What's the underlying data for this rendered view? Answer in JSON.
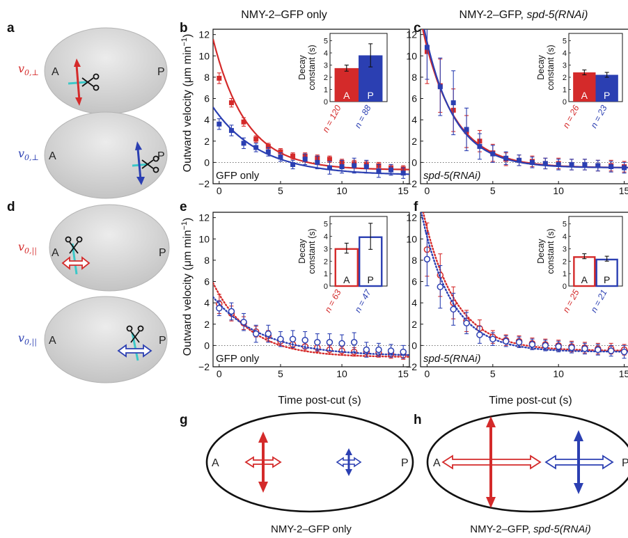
{
  "panel_labels": {
    "a": "a",
    "b": "b",
    "c": "c",
    "d": "d",
    "e": "e",
    "f": "f",
    "g": "g",
    "h": "h"
  },
  "column_titles": {
    "left": "NMY-2–GFP only",
    "right_main": "NMY-2–GFP, ",
    "right_italic": "spd-5(RNAi)"
  },
  "embryo_labels": {
    "anterior": "A",
    "posterior": "P"
  },
  "velocity_symbols": {
    "perp_base": "v",
    "perp_sub": "0,⊥",
    "par_base": "v",
    "par_sub": "0,||"
  },
  "colors": {
    "anterior": "#d42a2a",
    "posterior": "#2b3fb2",
    "cyan": "#3cc8c8",
    "embryo_fill": "#d6d6d6",
    "embryo_edge": "#b4b4b4"
  },
  "axes": {
    "ylabel_main": "Outward velocity (μm min",
    "ylabel_sup": "−1",
    "ylabel_close": ")",
    "xlabel": "Time post-cut (s)",
    "xticks": [
      0,
      5,
      10,
      15
    ],
    "yticks": [
      -2,
      0,
      2,
      4,
      6,
      8,
      10,
      12
    ],
    "xlim": [
      -0.5,
      15.5
    ],
    "ylim": [
      -2,
      12.5
    ],
    "inset_ylabel_1": "Decay",
    "inset_ylabel_2": "constant (s)",
    "inset_yticks": [
      0,
      1,
      2,
      3,
      4,
      5
    ],
    "inset_ylim": [
      0,
      5.6
    ]
  },
  "chart_data": [
    {
      "panel": "b",
      "type": "scatter",
      "condition_label": "GFP only",
      "marker": "filled-square",
      "fit": "solid",
      "series": [
        {
          "region": "A",
          "x": [
            0,
            1,
            2,
            3,
            4,
            5,
            6,
            7,
            8,
            9,
            10,
            11,
            12,
            13,
            14,
            15
          ],
          "y": [
            7.9,
            5.6,
            3.8,
            2.2,
            1.5,
            1.0,
            0.6,
            0.6,
            0.4,
            0.3,
            0.0,
            -0.1,
            -0.2,
            -0.3,
            -0.5,
            -0.6
          ],
          "err": [
            0.5,
            0.4,
            0.4,
            0.3,
            0.3,
            0.3,
            0.3,
            0.3,
            0.3,
            0.3,
            0.3,
            0.3,
            0.3,
            0.3,
            0.3,
            0.3
          ],
          "fit": {
            "amplitude": 10.2,
            "tau": 2.7,
            "offset": -0.7
          }
        },
        {
          "region": "P",
          "x": [
            0,
            1,
            2,
            3,
            4,
            5,
            6,
            7,
            8,
            9,
            10,
            11,
            12,
            13,
            14,
            15
          ],
          "y": [
            3.6,
            3.0,
            1.8,
            1.4,
            1.0,
            0.5,
            -0.2,
            0.3,
            0.0,
            -0.5,
            -0.4,
            -0.3,
            -0.4,
            -0.8,
            -0.7,
            -1.0
          ],
          "err": [
            0.5,
            0.5,
            0.5,
            0.4,
            0.4,
            0.4,
            0.4,
            0.5,
            0.6,
            0.6,
            0.6,
            0.7,
            0.6,
            0.6,
            0.5,
            0.5
          ],
          "fit": {
            "amplitude": 5.6,
            "tau": 3.8,
            "offset": -1.2
          }
        }
      ],
      "inset": {
        "type": "bar",
        "categories": [
          "A",
          "P"
        ],
        "values": [
          2.75,
          3.8
        ],
        "errors": [
          0.25,
          0.95
        ],
        "fill": "solid",
        "n": [
          "n = 120",
          "n = 88"
        ]
      }
    },
    {
      "panel": "c",
      "type": "scatter",
      "condition_label": "spd-5(RNAi)",
      "marker": "filled-square",
      "fit": "solid",
      "series": [
        {
          "region": "A",
          "x": [
            0,
            1,
            2,
            3,
            4,
            5,
            6,
            7,
            8,
            9,
            10,
            11,
            12,
            13,
            14,
            15
          ],
          "y": [
            10.4,
            7.2,
            4.9,
            2.9,
            2.0,
            0.9,
            0.3,
            0.2,
            0.1,
            -0.1,
            -0.1,
            -0.2,
            -0.2,
            -0.3,
            -0.3,
            -0.4
          ],
          "err": [
            3.0,
            2.5,
            2.0,
            1.5,
            1.0,
            0.8,
            0.6,
            0.5,
            0.5,
            0.5,
            0.5,
            0.5,
            0.5,
            0.5,
            0.5,
            0.5
          ],
          "fit": {
            "amplitude": 11.3,
            "tau": 2.4,
            "offset": -0.5
          }
        },
        {
          "region": "P",
          "x": [
            0,
            1,
            2,
            3,
            4,
            5,
            6,
            7,
            8,
            9,
            10,
            11,
            12,
            13,
            14,
            15
          ],
          "y": [
            10.8,
            7.1,
            5.6,
            3.1,
            1.5,
            0.8,
            0.4,
            0.2,
            0.0,
            -0.1,
            -0.2,
            -0.2,
            -0.2,
            -0.3,
            -0.4,
            -0.5
          ],
          "err": [
            3.0,
            2.7,
            3.0,
            2.0,
            1.2,
            0.8,
            0.6,
            0.5,
            0.5,
            0.5,
            0.5,
            0.5,
            0.5,
            0.5,
            0.5,
            0.5
          ],
          "fit": {
            "amplitude": 11.8,
            "tau": 2.25,
            "offset": -0.5
          }
        }
      ],
      "inset": {
        "type": "bar",
        "categories": [
          "A",
          "P"
        ],
        "values": [
          2.4,
          2.2
        ],
        "errors": [
          0.2,
          0.2
        ],
        "fill": "solid",
        "n": [
          "n = 26",
          "n = 23"
        ]
      }
    },
    {
      "panel": "e",
      "type": "scatter",
      "condition_label": "GFP only",
      "marker": "open-circle",
      "fit": "dotted",
      "series": [
        {
          "region": "A",
          "x": [
            0,
            1,
            2,
            3,
            4,
            5,
            6,
            7,
            8,
            9,
            10,
            11,
            12,
            13,
            14,
            15
          ],
          "y": [
            3.9,
            3.0,
            2.1,
            1.3,
            0.9,
            0.4,
            0.1,
            -0.1,
            -0.2,
            -0.4,
            -0.5,
            -0.6,
            -0.6,
            -0.7,
            -0.8,
            -0.9
          ],
          "err": [
            0.9,
            0.7,
            0.6,
            0.5,
            0.5,
            0.4,
            0.4,
            0.4,
            0.4,
            0.4,
            0.4,
            0.4,
            0.4,
            0.4,
            0.4,
            0.4
          ],
          "fit": {
            "amplitude": 5.9,
            "tau": 3.0,
            "offset": -1.1
          }
        },
        {
          "region": "P",
          "x": [
            0,
            1,
            2,
            3,
            4,
            5,
            6,
            7,
            8,
            9,
            10,
            11,
            12,
            13,
            14,
            15
          ],
          "y": [
            3.5,
            3.2,
            2.2,
            1.1,
            1.1,
            0.6,
            0.6,
            0.5,
            0.3,
            0.3,
            0.2,
            0.3,
            -0.4,
            -0.4,
            -0.5,
            -0.6
          ],
          "err": [
            0.7,
            0.8,
            0.8,
            0.8,
            0.8,
            0.7,
            0.8,
            0.8,
            0.8,
            0.8,
            0.8,
            0.9,
            0.7,
            0.6,
            0.6,
            0.6
          ],
          "fit": {
            "amplitude": 4.9,
            "tau": 4.0,
            "offset": -1.0
          }
        }
      ],
      "inset": {
        "type": "bar",
        "categories": [
          "A",
          "P"
        ],
        "values": [
          3.05,
          4.0
        ],
        "errors": [
          0.4,
          1.05
        ],
        "fill": "open",
        "n": [
          "n = 63",
          "n = 47"
        ]
      }
    },
    {
      "panel": "f",
      "type": "scatter",
      "condition_label": "spd-5(RNAi)",
      "marker": "open-circle",
      "fit": "dotted",
      "series": [
        {
          "region": "A",
          "x": [
            0,
            1,
            2,
            3,
            4,
            5,
            6,
            7,
            8,
            9,
            10,
            11,
            12,
            13,
            14,
            15
          ],
          "y": [
            9.0,
            6.6,
            4.0,
            2.3,
            1.6,
            0.8,
            0.5,
            0.4,
            0.2,
            0.1,
            0.0,
            -0.1,
            -0.2,
            -0.3,
            -0.3,
            -0.4
          ],
          "err": [
            2.5,
            2.0,
            1.5,
            1.0,
            0.8,
            0.6,
            0.5,
            0.5,
            0.5,
            0.5,
            0.5,
            0.5,
            0.5,
            0.5,
            0.5,
            0.5
          ],
          "fit": {
            "amplitude": 11.5,
            "tau": 2.4,
            "offset": -0.5
          }
        },
        {
          "region": "P",
          "x": [
            0,
            1,
            2,
            3,
            4,
            5,
            6,
            7,
            8,
            9,
            10,
            11,
            12,
            13,
            14,
            15
          ],
          "y": [
            8.1,
            5.5,
            3.4,
            2.1,
            1.0,
            0.6,
            0.4,
            0.3,
            0.1,
            0.0,
            -0.1,
            -0.2,
            -0.3,
            -0.4,
            -0.5,
            -0.6
          ],
          "err": [
            2.5,
            2.0,
            1.5,
            1.0,
            0.8,
            0.6,
            0.5,
            0.5,
            0.5,
            0.5,
            0.5,
            0.5,
            0.5,
            0.5,
            0.5,
            0.6
          ],
          "fit": {
            "amplitude": 10.8,
            "tau": 2.3,
            "offset": -0.6
          }
        }
      ],
      "inset": {
        "type": "bar",
        "categories": [
          "A",
          "P"
        ],
        "values": [
          2.4,
          2.2
        ],
        "errors": [
          0.2,
          0.2
        ],
        "fill": "open",
        "n": [
          "n = 25",
          "n = 21"
        ]
      }
    }
  ],
  "schematic_captions": {
    "g": "NMY-2–GFP only",
    "h_main": "NMY-2–GFP, ",
    "h_italic": "spd-5(RNAi)"
  }
}
